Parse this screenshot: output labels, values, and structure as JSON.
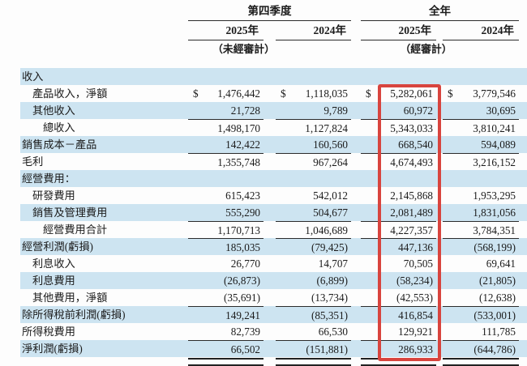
{
  "header": {
    "group1": {
      "title": "第四季度",
      "year1": "2025年",
      "year2": "2024年",
      "note": "（未經審計）"
    },
    "group2": {
      "title": "全年",
      "year1": "2025年",
      "year2": "2024年",
      "note": "（經審計）"
    }
  },
  "currency_symbol": "$",
  "columns": [
    "第四季度 2025年",
    "第四季度 2024年",
    "全年 2025年",
    "全年 2024年"
  ],
  "highlight": {
    "column": "全年 2025年",
    "color": "#d8443e"
  },
  "colors": {
    "row_shade": "#cde4f1",
    "rule": "#2b2b2b"
  },
  "rows": [
    {
      "label": "收入",
      "indent": 0,
      "shade": true,
      "dollar": false,
      "rule_above": false,
      "values": [
        "",
        "",
        "",
        ""
      ]
    },
    {
      "label": "產品收入，淨額",
      "indent": 1,
      "shade": false,
      "dollar": true,
      "rule_above": false,
      "values": [
        "1,476,442",
        "1,118,035",
        "5,282,061",
        "3,779,546"
      ]
    },
    {
      "label": "其他收入",
      "indent": 1,
      "shade": true,
      "dollar": false,
      "rule_above": false,
      "values": [
        "21,728",
        "9,789",
        "60,972",
        "30,695"
      ]
    },
    {
      "label": "總收入",
      "indent": 2,
      "shade": false,
      "dollar": false,
      "rule_above": true,
      "values": [
        "1,498,170",
        "1,127,824",
        "5,343,033",
        "3,810,241"
      ]
    },
    {
      "label": "銷售成本－產品",
      "indent": 0,
      "shade": true,
      "dollar": false,
      "rule_above": false,
      "values": [
        "142,422",
        "160,560",
        "668,540",
        "594,089"
      ]
    },
    {
      "label": "毛利",
      "indent": 0,
      "shade": false,
      "dollar": false,
      "rule_above": true,
      "values": [
        "1,355,748",
        "967,264",
        "4,674,493",
        "3,216,152"
      ]
    },
    {
      "label": "經營費用：",
      "indent": 0,
      "shade": true,
      "dollar": false,
      "rule_above": false,
      "values": [
        "",
        "",
        "",
        ""
      ]
    },
    {
      "label": "研發費用",
      "indent": 1,
      "shade": false,
      "dollar": false,
      "rule_above": false,
      "values": [
        "615,423",
        "542,012",
        "2,145,868",
        "1,953,295"
      ]
    },
    {
      "label": "銷售及管理費用",
      "indent": 1,
      "shade": true,
      "dollar": false,
      "rule_above": false,
      "values": [
        "555,290",
        "504,677",
        "2,081,489",
        "1,831,056"
      ]
    },
    {
      "label": "經營費用合計",
      "indent": 2,
      "shade": false,
      "dollar": false,
      "rule_above": true,
      "values": [
        "1,170,713",
        "1,046,689",
        "4,227,357",
        "3,784,351"
      ]
    },
    {
      "label": "經營利潤(虧損)",
      "indent": 0,
      "shade": true,
      "dollar": false,
      "rule_above": true,
      "values": [
        "185,035",
        "(79,425)",
        "447,136",
        "(568,199)"
      ]
    },
    {
      "label": "利息收入",
      "indent": 1,
      "shade": false,
      "dollar": false,
      "rule_above": false,
      "values": [
        "26,770",
        "14,707",
        "70,505",
        "69,641"
      ]
    },
    {
      "label": "利息費用",
      "indent": 1,
      "shade": true,
      "dollar": false,
      "rule_above": false,
      "values": [
        "(26,873)",
        "(6,899)",
        "(58,234)",
        "(21,805)"
      ]
    },
    {
      "label": "其他費用，淨額",
      "indent": 1,
      "shade": false,
      "dollar": false,
      "rule_above": false,
      "values": [
        "(35,691)",
        "(13,734)",
        "(42,553)",
        "(12,638)"
      ]
    },
    {
      "label": "除所得稅前利潤(虧損)",
      "indent": 0,
      "shade": true,
      "dollar": false,
      "rule_above": true,
      "values": [
        "149,241",
        "(85,351)",
        "416,854",
        "(533,001)"
      ]
    },
    {
      "label": "所得稅費用",
      "indent": 0,
      "shade": false,
      "dollar": false,
      "rule_above": false,
      "values": [
        "82,739",
        "66,530",
        "129,921",
        "111,785"
      ]
    },
    {
      "label": "淨利潤(虧損)",
      "indent": 0,
      "shade": true,
      "dollar": false,
      "rule_above": true,
      "values": [
        "66,502",
        "(151,881)",
        "286,933",
        "(644,786)"
      ]
    }
  ]
}
